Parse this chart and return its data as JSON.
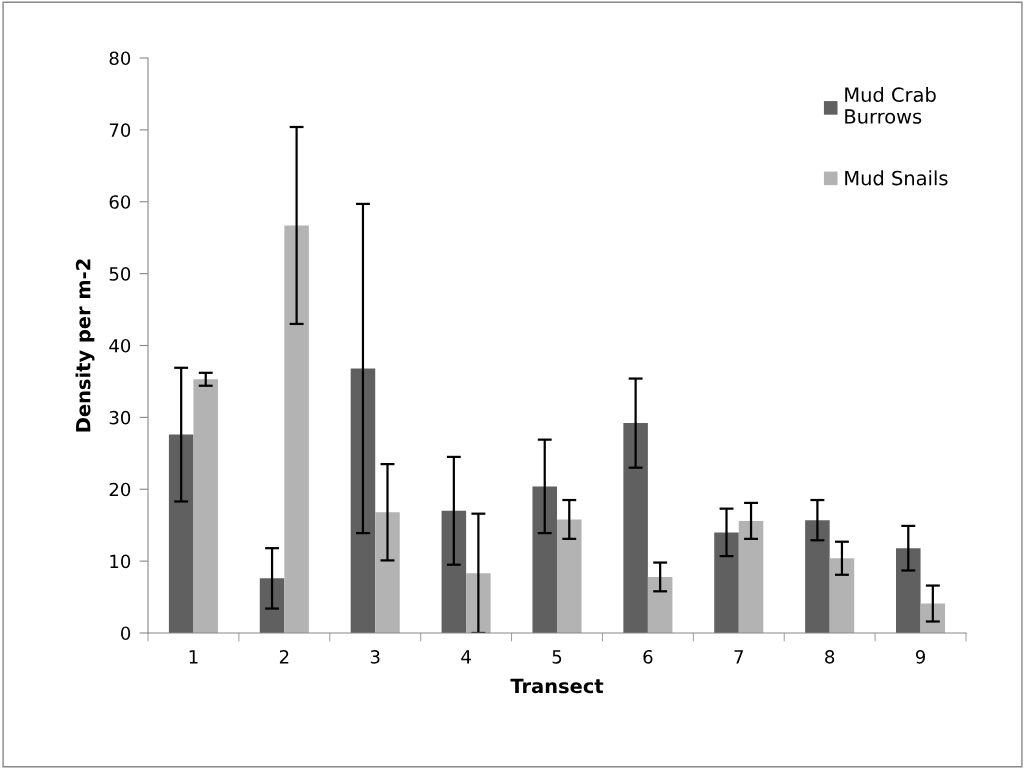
{
  "chart_data": {
    "type": "bar",
    "xlabel": "Transect",
    "ylabel": "Density per m-2",
    "categories": [
      "1",
      "2",
      "3",
      "4",
      "5",
      "6",
      "7",
      "8",
      "9"
    ],
    "series": [
      {
        "name": "Mud Crab\nBurrows",
        "color": "#606060",
        "values": [
          27.6,
          7.6,
          36.8,
          17.0,
          20.4,
          29.2,
          14.0,
          15.7,
          11.8
        ],
        "errors": [
          9.3,
          4.2,
          22.9,
          7.5,
          6.5,
          6.2,
          3.3,
          2.8,
          3.1
        ]
      },
      {
        "name": "Mud Snails",
        "color": "#b3b3b3",
        "values": [
          35.3,
          56.7,
          16.8,
          8.3,
          15.8,
          7.8,
          15.6,
          10.4,
          4.1
        ],
        "errors": [
          0.9,
          13.7,
          6.7,
          8.3,
          2.7,
          2.0,
          2.5,
          2.3,
          2.5
        ]
      }
    ],
    "ylim": [
      0,
      80
    ],
    "yticks": [
      0,
      10,
      20,
      30,
      40,
      50,
      60,
      70,
      80
    ],
    "grid": false,
    "legend": "top right"
  }
}
